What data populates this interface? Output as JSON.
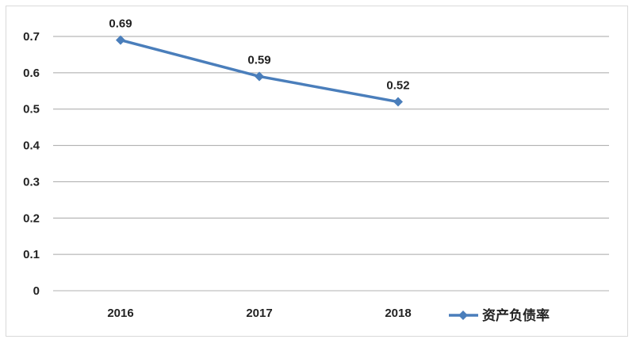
{
  "chart_data": {
    "type": "line",
    "categories": [
      "2016",
      "2017",
      "2018"
    ],
    "series": [
      {
        "name": "资产负债率",
        "values": [
          0.69,
          0.59,
          0.52
        ],
        "color": "#4a7ebb"
      }
    ],
    "data_labels": [
      "0.69",
      "0.59",
      "0.52"
    ],
    "y_ticks": [
      "0",
      "0.1",
      "0.2",
      "0.3",
      "0.4",
      "0.5",
      "0.6",
      "0.7"
    ],
    "ylim": [
      0,
      0.7
    ],
    "grid": true,
    "legend_position": "right",
    "title": "",
    "xlabel": "",
    "ylabel": ""
  }
}
